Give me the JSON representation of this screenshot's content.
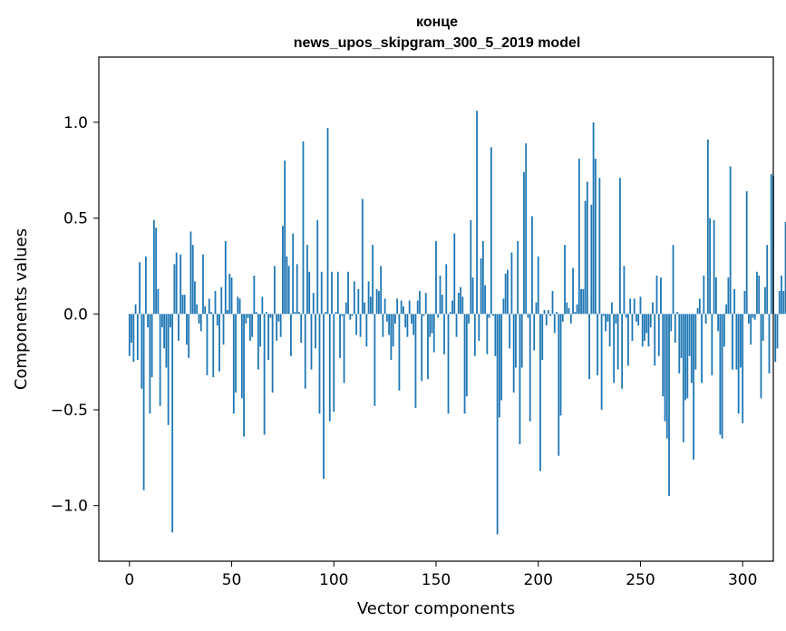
{
  "chart_data": {
    "type": "bar",
    "title": "конце",
    "subtitle": "news_upos_skipgram_300_5_2019 model",
    "xlabel": "Vector components",
    "ylabel": "Components values",
    "xlim": [
      -15,
      315
    ],
    "ylim": [
      -1.29,
      1.34
    ],
    "x_ticks": [
      0,
      50,
      100,
      150,
      200,
      250,
      300
    ],
    "y_ticks": [
      -1.0,
      -0.5,
      0.0,
      0.5,
      1.0
    ],
    "x_tick_labels": [
      "0",
      "50",
      "100",
      "150",
      "200",
      "250",
      "300"
    ],
    "y_tick_labels": [
      "−1.0",
      "−0.5",
      "0.0",
      "0.5",
      "1.0"
    ],
    "bar_color": "#1f77b4",
    "grid": false,
    "values": [
      -0.22,
      -0.15,
      -0.25,
      0.05,
      -0.24,
      0.27,
      -0.39,
      -0.92,
      0.3,
      -0.07,
      -0.52,
      -0.33,
      0.49,
      0.45,
      0.13,
      -0.48,
      -0.07,
      -0.18,
      -0.28,
      -0.58,
      -0.07,
      -1.14,
      0.26,
      0.32,
      -0.14,
      0.31,
      0.1,
      0.1,
      -0.16,
      -0.23,
      0.43,
      0.36,
      0.17,
      0.05,
      -0.05,
      -0.09,
      0.31,
      0.04,
      -0.32,
      0.08,
      0.01,
      -0.33,
      0.12,
      -0.06,
      -0.3,
      0.14,
      -0.16,
      0.38,
      0.02,
      0.21,
      0.19,
      -0.52,
      -0.41,
      0.09,
      0.08,
      -0.44,
      -0.64,
      -0.05,
      -0.02,
      -0.14,
      -0.12,
      0.2,
      0.01,
      -0.29,
      -0.17,
      0.09,
      -0.63,
      0.01,
      -0.24,
      -0.02,
      -0.41,
      0.25,
      -0.14,
      -0.04,
      -0.12,
      0.46,
      0.8,
      0.3,
      0.25,
      -0.22,
      0.42,
      0.01,
      0.26,
      0.01,
      -0.15,
      0.9,
      -0.39,
      0.36,
      0.22,
      -0.29,
      0.11,
      -0.18,
      0.49,
      -0.52,
      0.22,
      -0.86,
      0.01,
      0.97,
      -0.56,
      0.22,
      -0.51,
      0.01,
      0.22,
      -0.23,
      -0.01,
      -0.36,
      0.06,
      0.22,
      -0.03,
      -0.01,
      0.17,
      -0.11,
      0.13,
      -0.12,
      0.6,
      0.06,
      -0.17,
      0.17,
      0.09,
      0.36,
      -0.48,
      0.13,
      0.12,
      0.25,
      -0.12,
      0.08,
      -0.04,
      -0.11,
      -0.24,
      -0.17,
      -0.05,
      0.08,
      -0.4,
      0.07,
      0.04,
      -0.07,
      -0.12,
      0.07,
      -0.05,
      -0.11,
      -0.49,
      0.07,
      0.12,
      -0.35,
      -0.01,
      0.11,
      -0.34,
      -0.12,
      -0.1,
      -0.2,
      0.38,
      -0.02,
      0.2,
      0.1,
      -0.21,
      0.26,
      -0.52,
      0.01,
      0.07,
      0.42,
      -0.12,
      0.11,
      0.14,
      0.09,
      -0.52,
      -0.43,
      -0.05,
      0.49,
      0.19,
      -0.22,
      1.06,
      -0.14,
      0.29,
      0.38,
      0.15,
      -0.21,
      -0.02,
      0.87,
      -0.01,
      -0.22,
      -1.15,
      -0.54,
      -0.45,
      0.08,
      0.21,
      0.23,
      -0.18,
      0.32,
      -0.41,
      -0.28,
      0.38,
      -0.68,
      -0.28,
      0.74,
      0.89,
      -0.02,
      -0.56,
      0.51,
      -0.19,
      0.06,
      0.3,
      -0.82,
      -0.24,
      0.02,
      -0.06,
      0.02,
      -0.01,
      0.12,
      -0.1,
      0.01,
      -0.74,
      -0.53,
      -0.04,
      0.36,
      0.06,
      0.03,
      -0.05,
      0.24,
      0.01,
      0.05,
      0.81,
      0.13,
      0.13,
      0.59,
      0.69,
      -0.34,
      0.57,
      1.0,
      0.81,
      -0.32,
      0.71,
      -0.5,
      -0.01,
      -0.09,
      -0.04,
      -0.17,
      0.06,
      -0.36,
      -0.05,
      -0.29,
      0.71,
      -0.39,
      0.25,
      -0.02,
      -0.27,
      0.08,
      -0.14,
      0.08,
      -0.04,
      -0.06,
      0.09,
      -0.17,
      -0.14,
      -0.1,
      -0.17,
      -0.07,
      0.06,
      -0.27,
      0.2,
      -0.22,
      0.19,
      -0.43,
      -0.56,
      -0.65,
      -0.95,
      -0.09,
      0.36,
      -0.15,
      0.01,
      -0.31,
      -0.23,
      -0.67,
      -0.45,
      -0.44,
      -0.22,
      -0.36,
      -0.76,
      -0.29,
      0.03,
      0.08,
      -0.36,
      0.2,
      -0.05,
      0.91,
      0.5,
      -0.32,
      0.49,
      0.19,
      -0.09,
      -0.63,
      -0.65,
      -0.17,
      0.05,
      0.19,
      0.77,
      -0.29,
      0.13,
      -0.29,
      -0.52,
      -0.28,
      -0.57,
      0.12,
      0.64,
      -0.05,
      -0.16,
      -0.02,
      -0.03,
      0.22,
      0.2,
      -0.44,
      -0.14,
      0.14,
      0.36,
      -0.31,
      0.73,
      0.72,
      -0.25,
      -0.18,
      0.12,
      0.2,
      0.12,
      0.48
    ]
  }
}
